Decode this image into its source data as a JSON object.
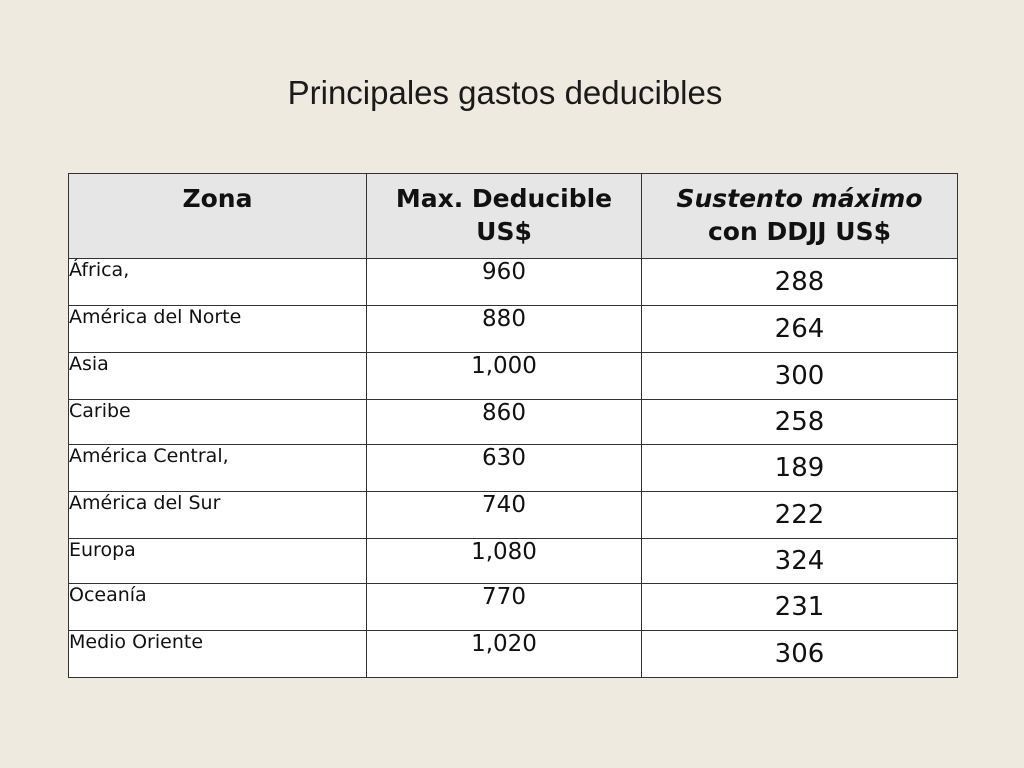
{
  "slide": {
    "title": "Principales gastos deducibles"
  },
  "table": {
    "headers": {
      "zona": "Zona",
      "max_line1": "Max. Deducible",
      "max_line2": "US$",
      "sust_line1": "Sustento máximo",
      "sust_line2": "con DDJJ US$"
    },
    "rows": [
      {
        "zona": "África,",
        "max": "960",
        "sustento": "288"
      },
      {
        "zona": "América del Norte",
        "max": "880",
        "sustento": "264"
      },
      {
        "zona": "Asia",
        "max": "1,000",
        "sustento": "300"
      },
      {
        "zona": "Caribe",
        "max": "860",
        "sustento": "258"
      },
      {
        "zona": "América Central,",
        "max": "630",
        "sustento": "189"
      },
      {
        "zona": "América del Sur",
        "max": "740",
        "sustento": "222"
      },
      {
        "zona": "Europa",
        "max": "1,080",
        "sustento": "324"
      },
      {
        "zona": "Oceanía",
        "max": "770",
        "sustento": "231"
      },
      {
        "zona": "Medio Oriente",
        "max": "1,020",
        "sustento": "306"
      }
    ]
  }
}
